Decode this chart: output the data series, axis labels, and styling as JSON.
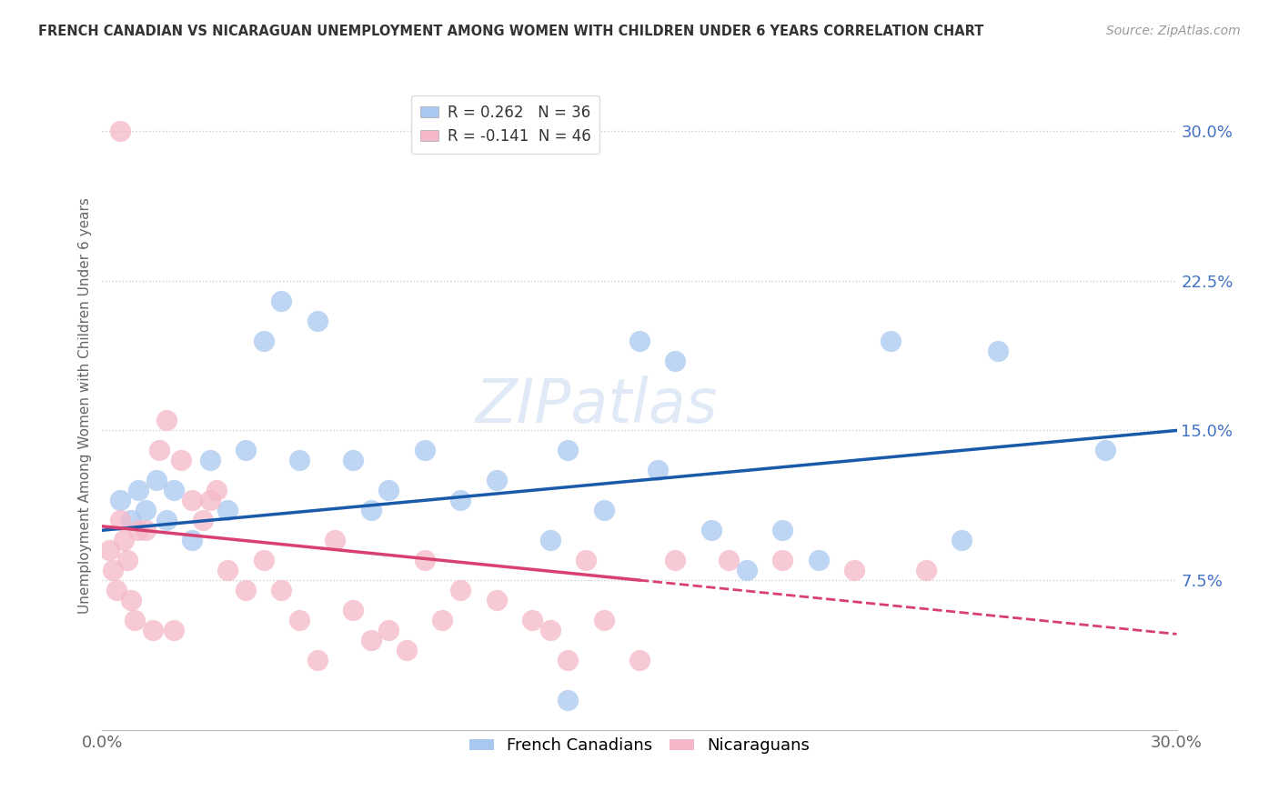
{
  "title": "FRENCH CANADIAN VS NICARAGUAN UNEMPLOYMENT AMONG WOMEN WITH CHILDREN UNDER 6 YEARS CORRELATION CHART",
  "source": "Source: ZipAtlas.com",
  "ylabel": "Unemployment Among Women with Children Under 6 years",
  "right_yticks": [
    7.5,
    15.0,
    22.5,
    30.0
  ],
  "right_ytick_labels": [
    "7.5%",
    "15.0%",
    "22.5%",
    "30.0%"
  ],
  "xmin": 0.0,
  "xmax": 30.0,
  "ymin": 0.0,
  "ymax": 32.5,
  "blue_R": 0.262,
  "blue_N": 36,
  "pink_R": -0.141,
  "pink_N": 46,
  "blue_color": "#a8c8f0",
  "pink_color": "#f5b8c8",
  "blue_line_color": "#1a5aaa",
  "pink_line_color": "#d84070",
  "legend_label_blue": "French Canadians",
  "legend_label_pink": "Nicaraguans",
  "watermark": "ZIPatlas",
  "blue_line_x0": 0.0,
  "blue_line_y0": 10.0,
  "blue_line_x1": 30.0,
  "blue_line_y1": 15.0,
  "pink_line_x0": 0.0,
  "pink_line_y0": 10.2,
  "pink_line_x1_solid": 15.0,
  "pink_line_y1_solid": 7.5,
  "pink_line_x1_dash": 30.0,
  "pink_line_y1_dash": 4.8,
  "blue_scatter_x": [
    0.5,
    0.8,
    1.0,
    1.2,
    1.5,
    1.8,
    2.0,
    2.5,
    3.0,
    3.5,
    4.0,
    4.5,
    5.0,
    5.5,
    6.0,
    7.0,
    7.5,
    8.0,
    9.0,
    10.0,
    11.0,
    12.5,
    13.0,
    14.0,
    15.0,
    16.0,
    17.0,
    18.0,
    19.0,
    20.0,
    22.0,
    24.0,
    25.0,
    28.0,
    15.5,
    13.0
  ],
  "blue_scatter_y": [
    11.5,
    10.5,
    12.0,
    11.0,
    12.5,
    10.5,
    12.0,
    9.5,
    13.5,
    11.0,
    14.0,
    19.5,
    21.5,
    13.5,
    20.5,
    13.5,
    11.0,
    12.0,
    14.0,
    11.5,
    12.5,
    9.5,
    14.0,
    11.0,
    19.5,
    18.5,
    10.0,
    8.0,
    10.0,
    8.5,
    19.5,
    9.5,
    19.0,
    14.0,
    13.0,
    1.5
  ],
  "pink_scatter_x": [
    0.2,
    0.3,
    0.4,
    0.5,
    0.6,
    0.7,
    0.8,
    0.9,
    1.0,
    1.2,
    1.4,
    1.6,
    1.8,
    2.0,
    2.2,
    2.5,
    2.8,
    3.0,
    3.2,
    3.5,
    4.0,
    4.5,
    5.0,
    5.5,
    6.0,
    6.5,
    7.0,
    7.5,
    8.0,
    8.5,
    9.0,
    9.5,
    10.0,
    11.0,
    12.0,
    12.5,
    13.0,
    13.5,
    14.0,
    15.0,
    16.0,
    17.5,
    19.0,
    21.0,
    23.0,
    0.5
  ],
  "pink_scatter_y": [
    9.0,
    8.0,
    7.0,
    10.5,
    9.5,
    8.5,
    6.5,
    5.5,
    10.0,
    10.0,
    5.0,
    14.0,
    15.5,
    5.0,
    13.5,
    11.5,
    10.5,
    11.5,
    12.0,
    8.0,
    7.0,
    8.5,
    7.0,
    5.5,
    3.5,
    9.5,
    6.0,
    4.5,
    5.0,
    4.0,
    8.5,
    5.5,
    7.0,
    6.5,
    5.5,
    5.0,
    3.5,
    8.5,
    5.5,
    3.5,
    8.5,
    8.5,
    8.5,
    8.0,
    8.0,
    30.0
  ]
}
